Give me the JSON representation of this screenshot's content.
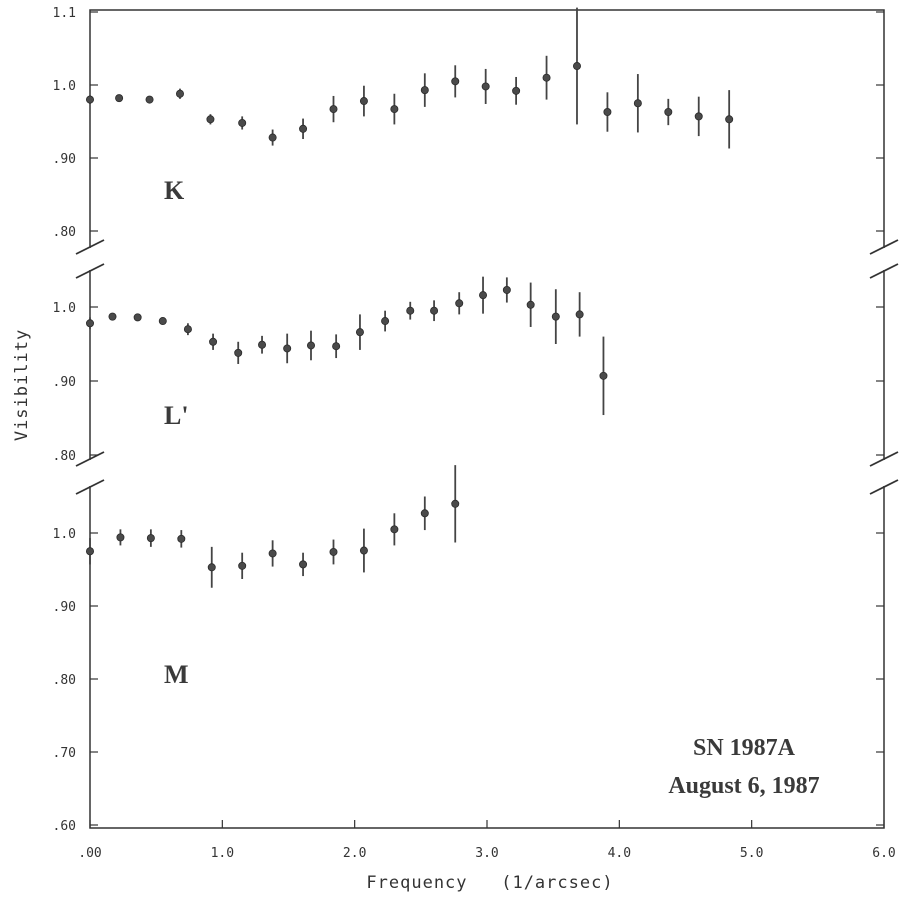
{
  "chart_data": {
    "type": "scatter",
    "title": "",
    "xlabel": "Frequency   (1/arcsec)",
    "ylabel": "Visibility",
    "xlim": [
      0,
      6.0
    ],
    "x_tick_labels": [
      ".00",
      "1.0",
      "2.0",
      "3.0",
      "4.0",
      "5.0",
      "6.0"
    ],
    "x_tick_values": [
      0,
      1,
      2,
      3,
      4,
      5,
      6
    ],
    "grid": false,
    "annotation": [
      "SN 1987A",
      "August 6, 1987"
    ],
    "panels": [
      {
        "label": "K",
        "ylim": [
          0.8,
          1.1
        ],
        "y_tick_values": [
          1.1,
          1.0,
          0.9,
          0.8
        ],
        "y_tick_labels": [
          "1.1",
          "1.0",
          ".90",
          ".80"
        ],
        "points": [
          {
            "x": 0.0,
            "y": 0.98,
            "err": 0.006
          },
          {
            "x": 0.22,
            "y": 0.982,
            "err": 0.004
          },
          {
            "x": 0.45,
            "y": 0.98,
            "err": 0.004
          },
          {
            "x": 0.68,
            "y": 0.988,
            "err": 0.007
          },
          {
            "x": 0.91,
            "y": 0.953,
            "err": 0.007
          },
          {
            "x": 1.15,
            "y": 0.948,
            "err": 0.009
          },
          {
            "x": 1.38,
            "y": 0.928,
            "err": 0.011
          },
          {
            "x": 1.61,
            "y": 0.94,
            "err": 0.014
          },
          {
            "x": 1.84,
            "y": 0.967,
            "err": 0.018
          },
          {
            "x": 2.07,
            "y": 0.978,
            "err": 0.021
          },
          {
            "x": 2.3,
            "y": 0.967,
            "err": 0.021
          },
          {
            "x": 2.53,
            "y": 0.993,
            "err": 0.023
          },
          {
            "x": 2.76,
            "y": 1.005,
            "err": 0.022
          },
          {
            "x": 2.99,
            "y": 0.998,
            "err": 0.024
          },
          {
            "x": 3.22,
            "y": 0.992,
            "err": 0.019
          },
          {
            "x": 3.45,
            "y": 1.01,
            "err": 0.03
          },
          {
            "x": 3.68,
            "y": 1.026,
            "err": 0.08
          },
          {
            "x": 3.91,
            "y": 0.963,
            "err": 0.027
          },
          {
            "x": 4.14,
            "y": 0.975,
            "err": 0.04
          },
          {
            "x": 4.37,
            "y": 0.963,
            "err": 0.018
          },
          {
            "x": 4.6,
            "y": 0.957,
            "err": 0.027
          },
          {
            "x": 4.83,
            "y": 0.953,
            "err": 0.04
          }
        ]
      },
      {
        "label": "L'",
        "ylim": [
          0.8,
          1.03
        ],
        "y_tick_values": [
          1.0,
          0.9,
          0.8
        ],
        "y_tick_labels": [
          "1.0",
          ".90",
          ".80"
        ],
        "points": [
          {
            "x": 0.0,
            "y": 0.978,
            "err": 0.008
          },
          {
            "x": 0.17,
            "y": 0.987,
            "err": 0.004
          },
          {
            "x": 0.36,
            "y": 0.986,
            "err": 0.004
          },
          {
            "x": 0.55,
            "y": 0.981,
            "err": 0.004
          },
          {
            "x": 0.74,
            "y": 0.97,
            "err": 0.008
          },
          {
            "x": 0.93,
            "y": 0.953,
            "err": 0.011
          },
          {
            "x": 1.12,
            "y": 0.938,
            "err": 0.015
          },
          {
            "x": 1.3,
            "y": 0.949,
            "err": 0.012
          },
          {
            "x": 1.49,
            "y": 0.944,
            "err": 0.02
          },
          {
            "x": 1.67,
            "y": 0.948,
            "err": 0.02
          },
          {
            "x": 1.86,
            "y": 0.947,
            "err": 0.016
          },
          {
            "x": 2.04,
            "y": 0.966,
            "err": 0.024
          },
          {
            "x": 2.23,
            "y": 0.981,
            "err": 0.014
          },
          {
            "x": 2.42,
            "y": 0.995,
            "err": 0.012
          },
          {
            "x": 2.6,
            "y": 0.995,
            "err": 0.014
          },
          {
            "x": 2.79,
            "y": 1.005,
            "err": 0.015
          },
          {
            "x": 2.97,
            "y": 1.016,
            "err": 0.025
          },
          {
            "x": 3.15,
            "y": 1.023,
            "err": 0.017
          },
          {
            "x": 3.33,
            "y": 1.003,
            "err": 0.03
          },
          {
            "x": 3.52,
            "y": 0.987,
            "err": 0.037
          },
          {
            "x": 3.7,
            "y": 0.99,
            "err": 0.03
          },
          {
            "x": 3.88,
            "y": 0.907,
            "err": 0.053
          }
        ]
      },
      {
        "label": "M",
        "ylim": [
          0.6,
          1.05
        ],
        "y_tick_values": [
          1.0,
          0.9,
          0.8,
          0.7,
          0.6
        ],
        "y_tick_labels": [
          "1.0",
          ".90",
          ".80",
          ".70",
          ".60"
        ],
        "points": [
          {
            "x": 0.0,
            "y": 0.975,
            "err": 0.018
          },
          {
            "x": 0.23,
            "y": 0.994,
            "err": 0.011
          },
          {
            "x": 0.46,
            "y": 0.993,
            "err": 0.012
          },
          {
            "x": 0.69,
            "y": 0.992,
            "err": 0.012
          },
          {
            "x": 0.92,
            "y": 0.953,
            "err": 0.028
          },
          {
            "x": 1.15,
            "y": 0.955,
            "err": 0.018
          },
          {
            "x": 1.38,
            "y": 0.972,
            "err": 0.018
          },
          {
            "x": 1.61,
            "y": 0.957,
            "err": 0.016
          },
          {
            "x": 1.84,
            "y": 0.974,
            "err": 0.017
          },
          {
            "x": 2.07,
            "y": 0.976,
            "err": 0.03
          },
          {
            "x": 2.3,
            "y": 1.005,
            "err": 0.022
          },
          {
            "x": 2.53,
            "y": 1.027,
            "err": 0.023
          },
          {
            "x": 2.76,
            "y": 1.04,
            "err": 0.053
          }
        ]
      }
    ]
  }
}
